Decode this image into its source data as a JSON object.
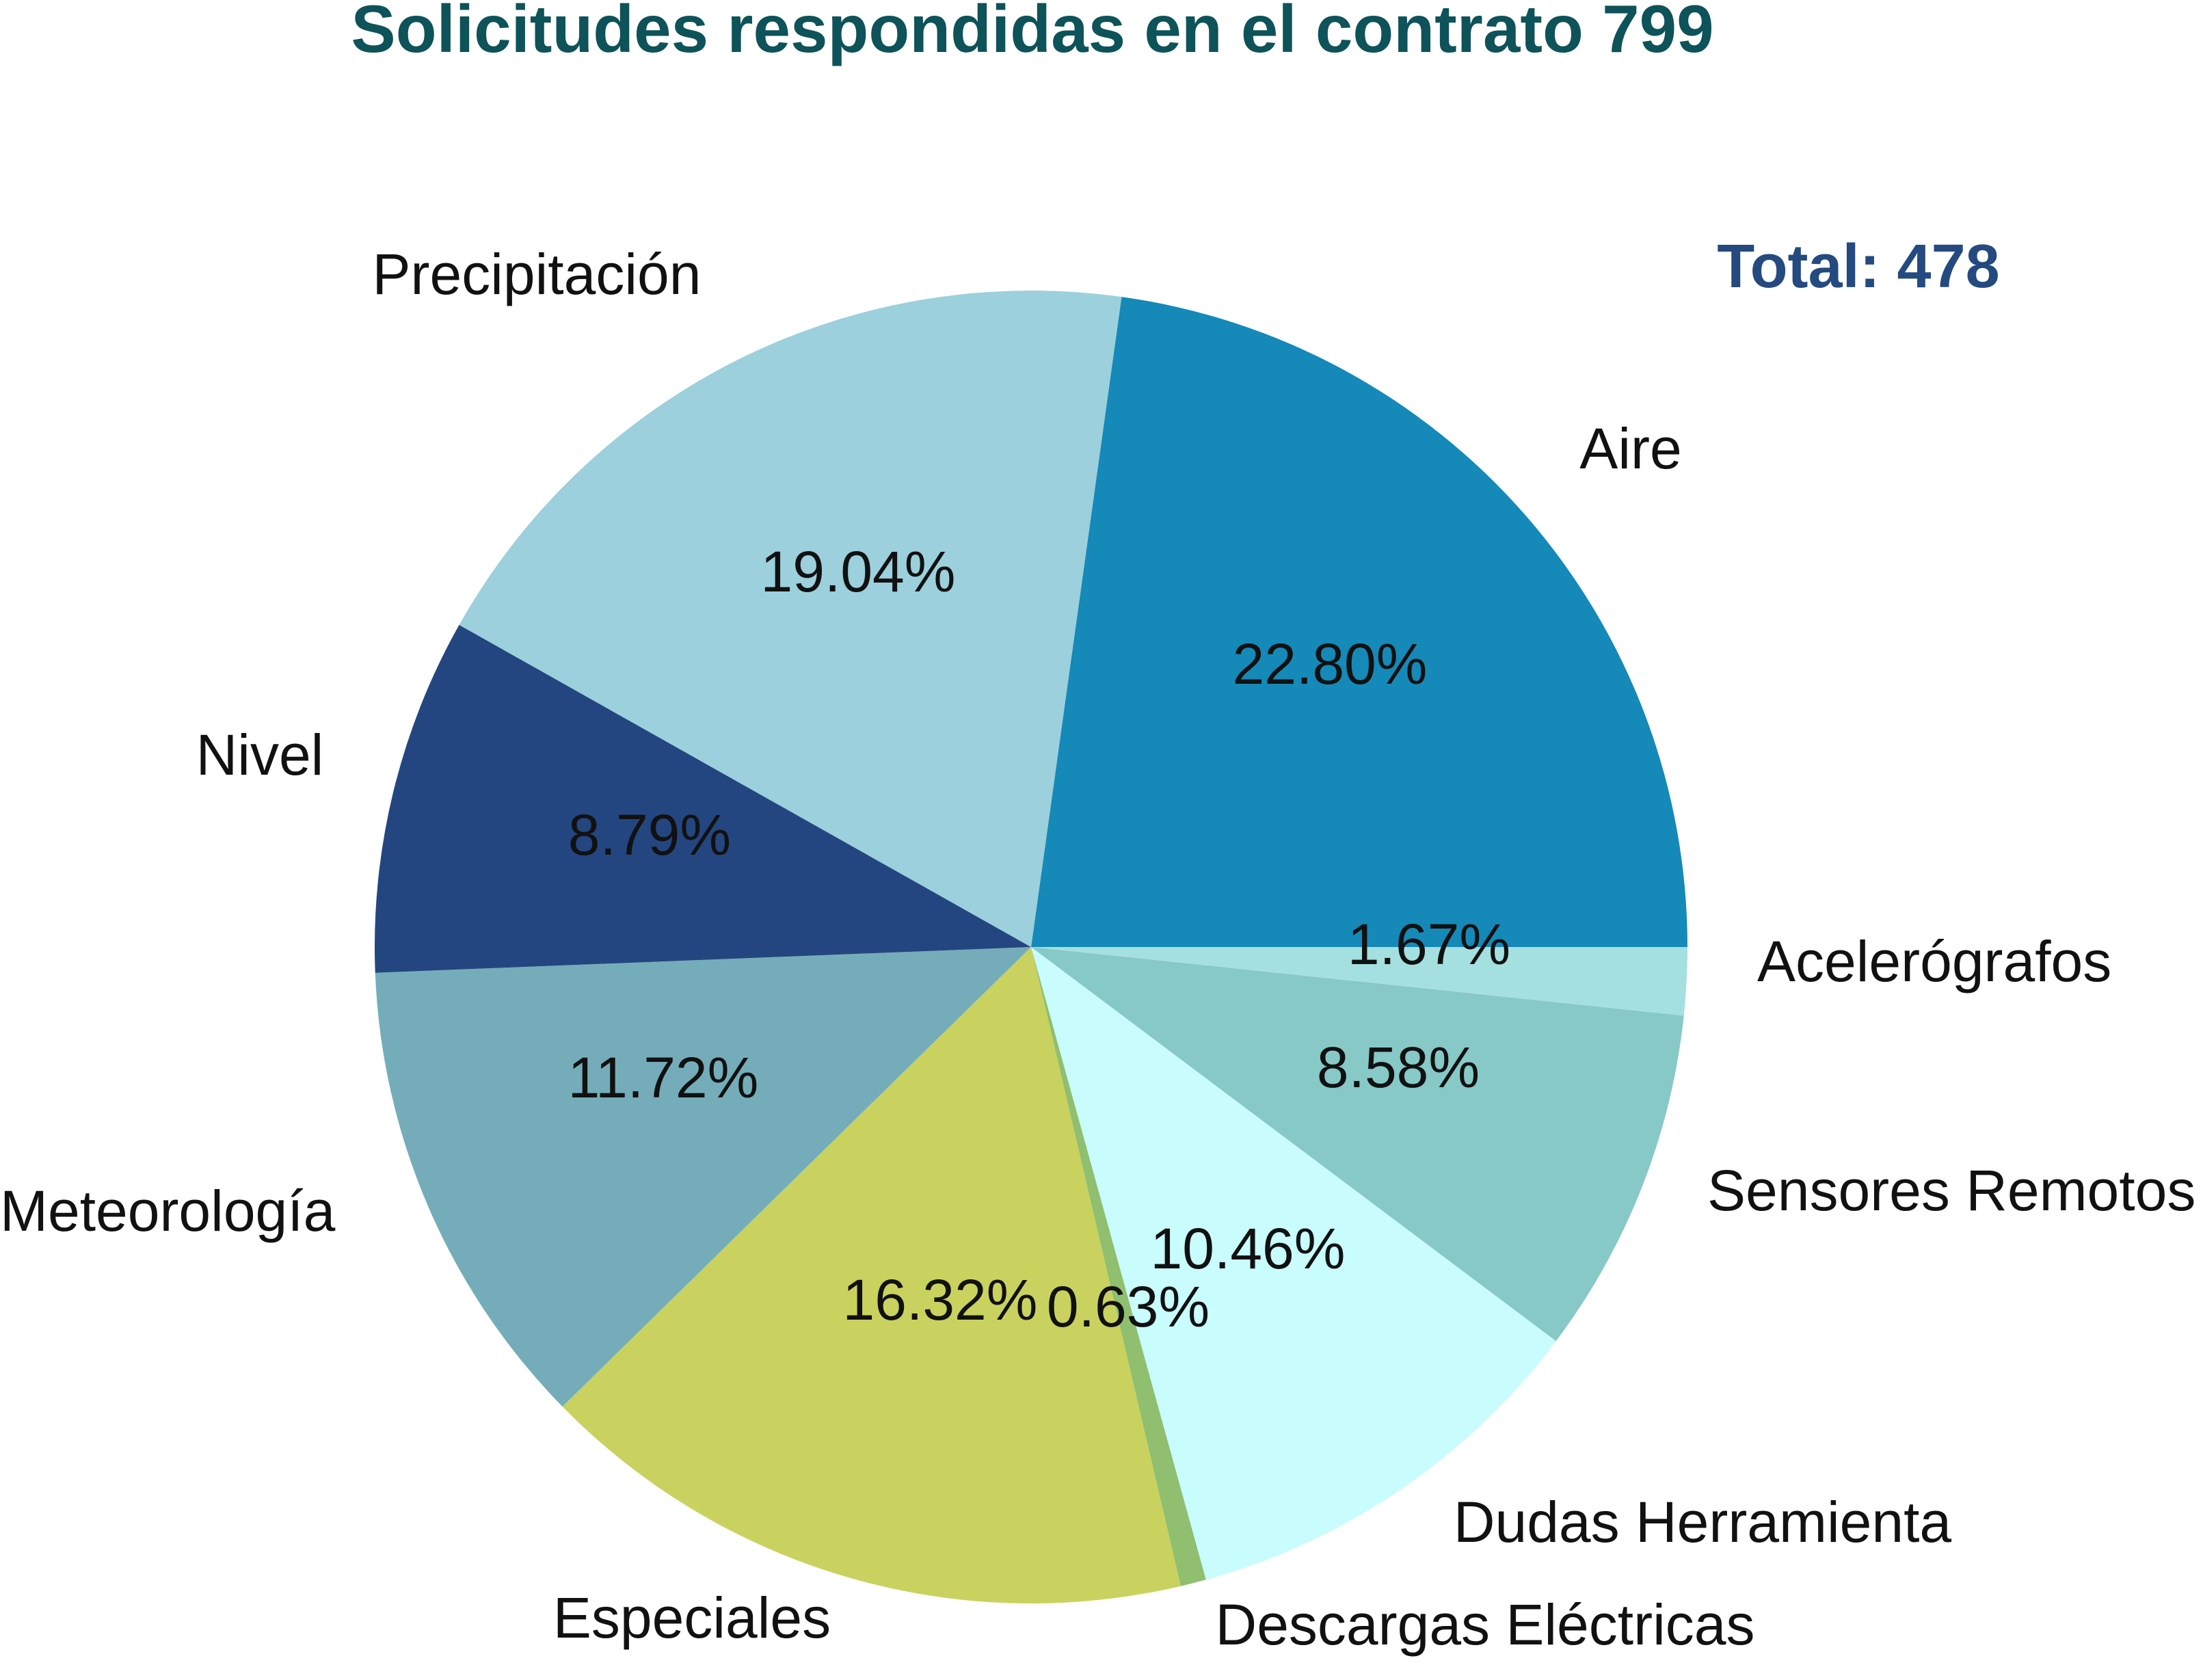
{
  "chart_data": {
    "type": "pie",
    "title": "Solicitudes respondidas en el contrato 799",
    "total_label": "Total: 478",
    "slices": [
      {
        "label": "Aire",
        "value": 22.8,
        "value_label": "22.80%",
        "color": "#1589b8"
      },
      {
        "label": "Acelerógrafos",
        "value": 1.67,
        "value_label": "1.67%",
        "color": "#a4e0df"
      },
      {
        "label": "Sensores Remotos",
        "value": 8.58,
        "value_label": "8.58%",
        "color": "#86c9c7"
      },
      {
        "label": "Dudas Herramienta",
        "value": 10.46,
        "value_label": "10.46%",
        "color": "#c8fcfd"
      },
      {
        "label": "Descargas Eléctricas",
        "value": 0.63,
        "value_label": "0.63%",
        "color": "#8fbf6f"
      },
      {
        "label": "Especiales",
        "value": 16.32,
        "value_label": "16.32%",
        "color": "#c9d25f"
      },
      {
        "label": "Meteorología",
        "value": 11.72,
        "value_label": "11.72%",
        "color": "#74adb9"
      },
      {
        "label": "Nivel",
        "value": 8.79,
        "value_label": "8.79%",
        "color": "#244680"
      },
      {
        "label": "Precipitación",
        "value": 19.04,
        "value_label": "19.04%",
        "color": "#9bd0dc"
      }
    ],
    "colors": {
      "title": "#0d5359",
      "total": "#244a7f",
      "text": "#111111"
    }
  }
}
